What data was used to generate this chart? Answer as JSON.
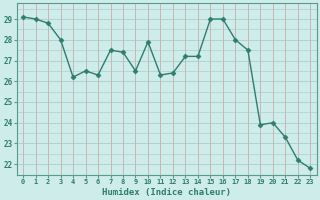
{
  "x": [
    0,
    1,
    2,
    3,
    4,
    5,
    6,
    7,
    8,
    9,
    10,
    11,
    12,
    13,
    14,
    15,
    16,
    17,
    18,
    19,
    20,
    21,
    22,
    23
  ],
  "y": [
    29.1,
    29.0,
    28.8,
    28.0,
    26.2,
    26.5,
    26.3,
    27.5,
    27.4,
    26.5,
    27.9,
    26.3,
    26.4,
    27.2,
    27.2,
    29.0,
    29.0,
    28.0,
    27.5,
    23.9,
    24.0,
    23.3,
    22.2,
    21.8
  ],
  "line_color": "#2e7d6e",
  "marker": "D",
  "marker_size": 2.5,
  "bg_color": "#cdecea",
  "grid_color_major": "#c8a8a8",
  "grid_color_minor": "#b8d8d5",
  "xlabel": "Humidex (Indice chaleur)",
  "ylabel": "",
  "ylim": [
    21.5,
    29.75
  ],
  "yticks": [
    22,
    23,
    24,
    25,
    26,
    27,
    28,
    29
  ],
  "xlim": [
    -0.5,
    23.5
  ],
  "xticks": [
    0,
    1,
    2,
    3,
    4,
    5,
    6,
    7,
    8,
    9,
    10,
    11,
    12,
    13,
    14,
    15,
    16,
    17,
    18,
    19,
    20,
    21,
    22,
    23
  ],
  "tick_color": "#2e7d6e",
  "label_color": "#2e7d6e",
  "spine_color": "#5a9a8a"
}
